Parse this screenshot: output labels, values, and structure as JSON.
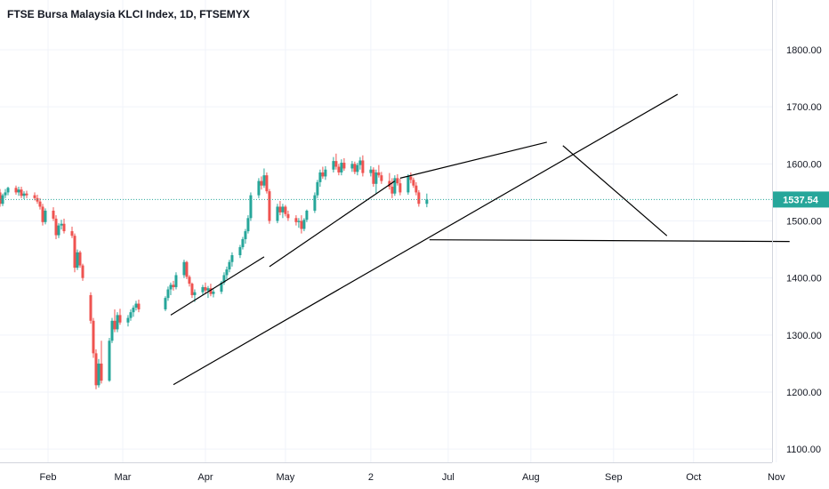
{
  "title": "FTSE Bursa Malaysia KLCI Index, 1D, FTSEMYX",
  "chart_data": {
    "type": "candlestick",
    "title": "FTSE Bursa Malaysia KLCI Index, 1D, FTSEMYX",
    "ylim": [
      1070,
      1880
    ],
    "y_ticks": [
      "1800.00",
      "1700.00",
      "1600.00",
      "1500.00",
      "1400.00",
      "1300.00",
      "1200.00",
      "1100.00"
    ],
    "y_tick_values": [
      1800,
      1700,
      1600,
      1500,
      1400,
      1300,
      1200,
      1100
    ],
    "x_ticks": [
      "Feb",
      "Mar",
      "Apr",
      "May",
      "2",
      "Jul",
      "Aug",
      "Sep",
      "Oct",
      "Nov"
    ],
    "last_price": 1537.54,
    "last_price_label": "1537.54",
    "grid": true,
    "colors": {
      "up": "#26a69a",
      "down": "#ef5350",
      "line": "#000000",
      "price": "#26a69a",
      "grid": "#f0f3fa"
    },
    "candles": [
      [
        1588,
        1596,
        1583,
        1592
      ],
      [
        1592,
        1598,
        1587,
        1590
      ],
      [
        1590,
        1597,
        1585,
        1594
      ],
      [
        1594,
        1600,
        1588,
        1589
      ],
      [
        1589,
        1593,
        1575,
        1578
      ],
      [
        1578,
        1584,
        1566,
        1570
      ],
      [
        1570,
        1575,
        1555,
        1560
      ],
      [
        1560,
        1566,
        1550,
        1555
      ],
      [
        1555,
        1562,
        1545,
        1550
      ],
      [
        1550,
        1556,
        1525,
        1530
      ],
      [
        1530,
        1548,
        1526,
        1545
      ],
      [
        1545,
        1556,
        1540,
        1550
      ],
      [
        1550,
        1560,
        1545,
        1558
      ],
      [
        1558,
        1562,
        1546,
        1550
      ],
      [
        1550,
        1560,
        1544,
        1555
      ],
      [
        1555,
        1560,
        1540,
        1544
      ],
      [
        1544,
        1552,
        1538,
        1548
      ],
      [
        1548,
        1553,
        1540,
        1545
      ],
      [
        1545,
        1550,
        1536,
        1540
      ],
      [
        1540,
        1546,
        1530,
        1534
      ],
      [
        1534,
        1540,
        1520,
        1525
      ],
      [
        1525,
        1530,
        1492,
        1498
      ],
      [
        1498,
        1522,
        1494,
        1518
      ],
      [
        1518,
        1524,
        1500,
        1504
      ],
      [
        1504,
        1510,
        1468,
        1475
      ],
      [
        1475,
        1496,
        1470,
        1492
      ],
      [
        1492,
        1502,
        1485,
        1495
      ],
      [
        1495,
        1504,
        1478,
        1482
      ],
      [
        1482,
        1490,
        1470,
        1474
      ],
      [
        1474,
        1478,
        1410,
        1418
      ],
      [
        1418,
        1450,
        1414,
        1445
      ],
      [
        1445,
        1448,
        1418,
        1422
      ],
      [
        1422,
        1425,
        1395,
        1400
      ],
      [
        1370,
        1375,
        1320,
        1325
      ],
      [
        1325,
        1330,
        1260,
        1268
      ],
      [
        1268,
        1275,
        1205,
        1212
      ],
      [
        1212,
        1258,
        1208,
        1250
      ],
      [
        1250,
        1290,
        1215,
        1220
      ],
      [
        1220,
        1295,
        1218,
        1290
      ],
      [
        1290,
        1330,
        1286,
        1325
      ],
      [
        1325,
        1345,
        1305,
        1310
      ],
      [
        1310,
        1340,
        1305,
        1335
      ],
      [
        1335,
        1346,
        1318,
        1322
      ],
      [
        1322,
        1335,
        1315,
        1330
      ],
      [
        1330,
        1345,
        1325,
        1340
      ],
      [
        1340,
        1352,
        1332,
        1348
      ],
      [
        1348,
        1360,
        1343,
        1355
      ],
      [
        1355,
        1362,
        1340,
        1345
      ],
      [
        1345,
        1368,
        1342,
        1365
      ],
      [
        1365,
        1385,
        1360,
        1380
      ],
      [
        1380,
        1392,
        1370,
        1388
      ],
      [
        1388,
        1395,
        1378,
        1384
      ],
      [
        1384,
        1410,
        1380,
        1405
      ],
      [
        1405,
        1432,
        1400,
        1428
      ],
      [
        1428,
        1430,
        1398,
        1402
      ],
      [
        1402,
        1405,
        1385,
        1390
      ],
      [
        1390,
        1392,
        1365,
        1370
      ],
      [
        1370,
        1380,
        1358,
        1375
      ],
      [
        1375,
        1388,
        1370,
        1384
      ],
      [
        1384,
        1392,
        1372,
        1378
      ],
      [
        1378,
        1386,
        1365,
        1382
      ],
      [
        1382,
        1390,
        1368,
        1372
      ],
      [
        1372,
        1380,
        1366,
        1376
      ],
      [
        1376,
        1395,
        1372,
        1392
      ],
      [
        1392,
        1410,
        1388,
        1405
      ],
      [
        1405,
        1420,
        1398,
        1415
      ],
      [
        1415,
        1432,
        1410,
        1428
      ],
      [
        1428,
        1445,
        1420,
        1440
      ],
      [
        1440,
        1458,
        1435,
        1454
      ],
      [
        1454,
        1472,
        1450,
        1468
      ],
      [
        1468,
        1486,
        1460,
        1482
      ],
      [
        1482,
        1510,
        1478,
        1505
      ],
      [
        1505,
        1550,
        1500,
        1545
      ],
      [
        1545,
        1575,
        1540,
        1570
      ],
      [
        1570,
        1578,
        1555,
        1562
      ],
      [
        1562,
        1592,
        1558,
        1580
      ],
      [
        1580,
        1585,
        1548,
        1552
      ],
      [
        1552,
        1556,
        1495,
        1500
      ],
      [
        1500,
        1530,
        1496,
        1525
      ],
      [
        1525,
        1535,
        1510,
        1515
      ],
      [
        1515,
        1530,
        1505,
        1525
      ],
      [
        1525,
        1528,
        1508,
        1512
      ],
      [
        1512,
        1518,
        1500,
        1505
      ],
      [
        1505,
        1510,
        1492,
        1498
      ],
      [
        1498,
        1505,
        1488,
        1500
      ],
      [
        1500,
        1510,
        1478,
        1486
      ],
      [
        1486,
        1505,
        1482,
        1502
      ],
      [
        1502,
        1520,
        1498,
        1518
      ],
      [
        1518,
        1550,
        1514,
        1545
      ],
      [
        1545,
        1572,
        1540,
        1568
      ],
      [
        1568,
        1590,
        1560,
        1585
      ],
      [
        1585,
        1595,
        1574,
        1578
      ],
      [
        1578,
        1596,
        1572,
        1590
      ],
      [
        1590,
        1612,
        1585,
        1605
      ],
      [
        1605,
        1618,
        1590,
        1595
      ],
      [
        1595,
        1600,
        1580,
        1585
      ],
      [
        1585,
        1608,
        1580,
        1602
      ],
      [
        1602,
        1610,
        1588,
        1592
      ],
      [
        1592,
        1605,
        1586,
        1600
      ],
      [
        1600,
        1604,
        1582,
        1586
      ],
      [
        1586,
        1602,
        1580,
        1598
      ],
      [
        1598,
        1612,
        1590,
        1606
      ],
      [
        1606,
        1615,
        1578,
        1584
      ],
      [
        1584,
        1596,
        1578,
        1590
      ],
      [
        1590,
        1594,
        1560,
        1565
      ],
      [
        1565,
        1590,
        1548,
        1585
      ],
      [
        1585,
        1598,
        1576,
        1580
      ],
      [
        1580,
        1586,
        1565,
        1570
      ],
      [
        1570,
        1584,
        1555,
        1560
      ],
      [
        1560,
        1575,
        1540,
        1548
      ],
      [
        1548,
        1580,
        1544,
        1575
      ],
      [
        1575,
        1582,
        1562,
        1566
      ],
      [
        1566,
        1574,
        1545,
        1550
      ],
      [
        1550,
        1582,
        1546,
        1578
      ],
      [
        1578,
        1585,
        1566,
        1572
      ],
      [
        1572,
        1576,
        1558,
        1562
      ],
      [
        1562,
        1568,
        1545,
        1550
      ],
      [
        1550,
        1554,
        1525,
        1530
      ],
      [
        1530,
        1548,
        1524,
        1537.54
      ]
    ],
    "trend_lines": [
      {
        "from": {
          "date": "Mar 19",
          "price": 1335
        },
        "to": {
          "date": "Apr 23",
          "price": 1437
        }
      },
      {
        "from": {
          "date": "Apr 25",
          "price": 1420
        },
        "to": {
          "date": "Jun 11",
          "price": 1570
        }
      },
      {
        "from": {
          "date": "Mar 20",
          "price": 1213
        },
        "to": {
          "date": "Sep 25",
          "price": 1722
        }
      },
      {
        "from": {
          "date": "Jun 13",
          "price": 1575
        },
        "to": {
          "date": "Aug 7",
          "price": 1638
        }
      },
      {
        "from": {
          "date": "Jun 24",
          "price": 1467
        },
        "to": {
          "date": "Nov 6",
          "price": 1464
        }
      },
      {
        "from": {
          "date": "Aug 13",
          "price": 1632
        },
        "to": {
          "date": "Sep 21",
          "price": 1474
        }
      }
    ]
  }
}
